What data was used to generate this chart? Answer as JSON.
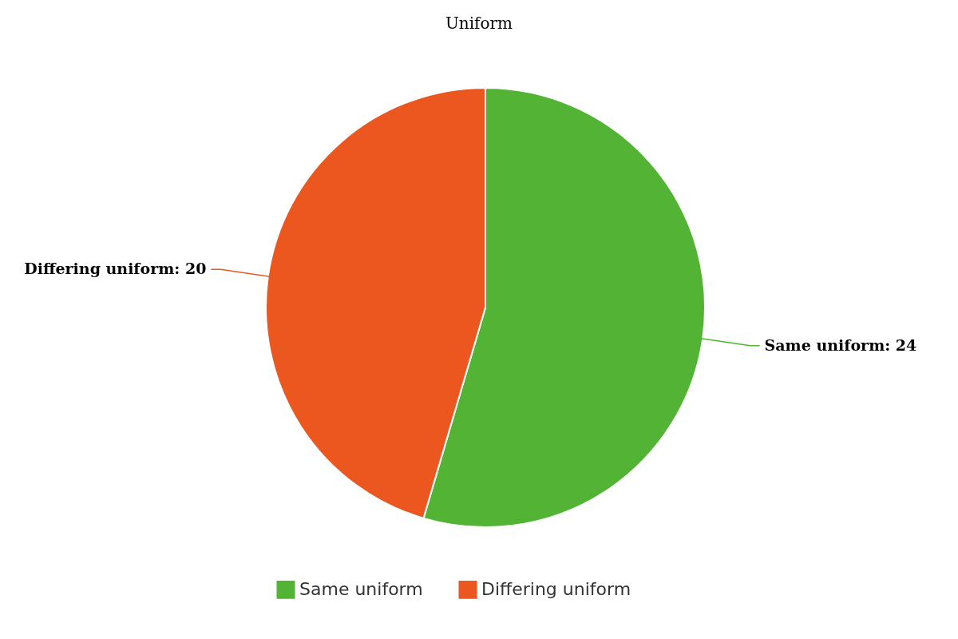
{
  "chart_data": {
    "type": "pie",
    "title": "Uniform",
    "categories": [
      "Same uniform",
      "Differing uniform"
    ],
    "values": [
      24,
      20
    ],
    "value_labels": [
      "Same uniform: 24",
      "Differing uniform: 20"
    ],
    "colors": [
      "#52b335",
      "#eb571e"
    ],
    "legend": "bottom"
  }
}
